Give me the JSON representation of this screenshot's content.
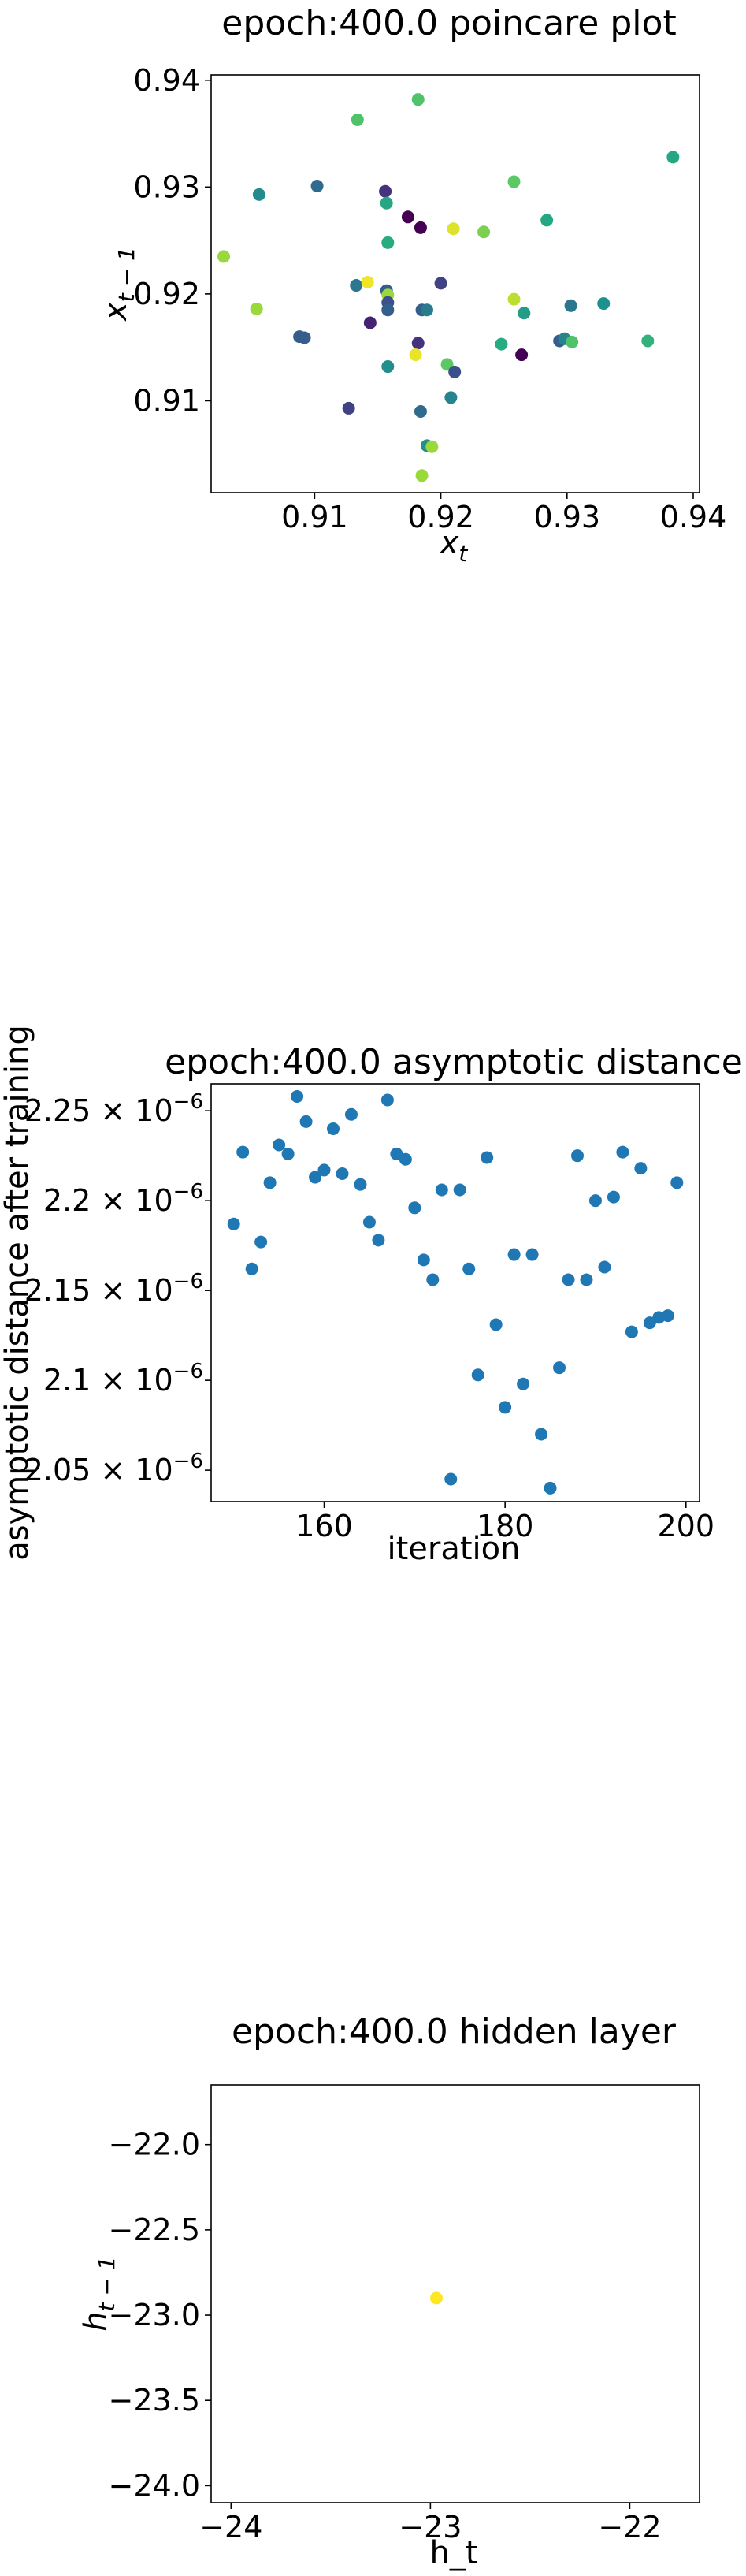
{
  "chart_data": [
    {
      "type": "scatter",
      "title": "epoch:400.0 poincare plot",
      "xlabel": "x_t",
      "ylabel": "x_{t-1}",
      "xlim": [
        0.9018,
        0.9405
      ],
      "ylim": [
        0.9014,
        0.9405
      ],
      "xticks": [
        0.91,
        0.92,
        0.93,
        0.94
      ],
      "xtick_labels": [
        "0.91",
        "0.92",
        "0.93",
        "0.94"
      ],
      "yticks": [
        0.91,
        0.92,
        0.93,
        0.94
      ],
      "ytick_labels": [
        "0.91",
        "0.92",
        "0.93",
        "0.94"
      ],
      "grid": false,
      "colormap": "viridis",
      "points": [
        {
          "x": 0.9134,
          "y": 0.9363,
          "c": 0.72
        },
        {
          "x": 0.9182,
          "y": 0.9382,
          "c": 0.72
        },
        {
          "x": 0.9384,
          "y": 0.9328,
          "c": 0.6
        },
        {
          "x": 0.9258,
          "y": 0.9305,
          "c": 0.75
        },
        {
          "x": 0.9056,
          "y": 0.9293,
          "c": 0.48
        },
        {
          "x": 0.9102,
          "y": 0.9301,
          "c": 0.35
        },
        {
          "x": 0.9156,
          "y": 0.9296,
          "c": 0.15
        },
        {
          "x": 0.9157,
          "y": 0.9285,
          "c": 0.6
        },
        {
          "x": 0.9174,
          "y": 0.9272,
          "c": 0.0
        },
        {
          "x": 0.9184,
          "y": 0.9262,
          "c": 0.0
        },
        {
          "x": 0.921,
          "y": 0.9261,
          "c": 0.95
        },
        {
          "x": 0.9234,
          "y": 0.9258,
          "c": 0.8
        },
        {
          "x": 0.9284,
          "y": 0.9269,
          "c": 0.6
        },
        {
          "x": 0.9158,
          "y": 0.9248,
          "c": 0.62
        },
        {
          "x": 0.9028,
          "y": 0.9235,
          "c": 0.85
        },
        {
          "x": 0.9133,
          "y": 0.9208,
          "c": 0.4
        },
        {
          "x": 0.9142,
          "y": 0.9211,
          "c": 0.98
        },
        {
          "x": 0.9157,
          "y": 0.9203,
          "c": 0.3
        },
        {
          "x": 0.9158,
          "y": 0.9199,
          "c": 0.85
        },
        {
          "x": 0.9158,
          "y": 0.9192,
          "c": 0.25
        },
        {
          "x": 0.9158,
          "y": 0.9185,
          "c": 0.3
        },
        {
          "x": 0.9185,
          "y": 0.9185,
          "c": 0.3
        },
        {
          "x": 0.9189,
          "y": 0.9185,
          "c": 0.42
        },
        {
          "x": 0.92,
          "y": 0.921,
          "c": 0.2
        },
        {
          "x": 0.9258,
          "y": 0.9195,
          "c": 0.9
        },
        {
          "x": 0.9266,
          "y": 0.9182,
          "c": 0.55
        },
        {
          "x": 0.9303,
          "y": 0.9189,
          "c": 0.4
        },
        {
          "x": 0.9329,
          "y": 0.9191,
          "c": 0.5
        },
        {
          "x": 0.9054,
          "y": 0.9186,
          "c": 0.85
        },
        {
          "x": 0.9144,
          "y": 0.9173,
          "c": 0.1
        },
        {
          "x": 0.9088,
          "y": 0.916,
          "c": 0.3
        },
        {
          "x": 0.9092,
          "y": 0.9159,
          "c": 0.3
        },
        {
          "x": 0.9182,
          "y": 0.9154,
          "c": 0.15
        },
        {
          "x": 0.9248,
          "y": 0.9153,
          "c": 0.62
        },
        {
          "x": 0.9294,
          "y": 0.9156,
          "c": 0.3
        },
        {
          "x": 0.9298,
          "y": 0.9158,
          "c": 0.45
        },
        {
          "x": 0.9304,
          "y": 0.9155,
          "c": 0.72
        },
        {
          "x": 0.9364,
          "y": 0.9156,
          "c": 0.65
        },
        {
          "x": 0.918,
          "y": 0.9143,
          "c": 0.97
        },
        {
          "x": 0.9264,
          "y": 0.9143,
          "c": 0.0
        },
        {
          "x": 0.9158,
          "y": 0.9132,
          "c": 0.5
        },
        {
          "x": 0.9205,
          "y": 0.9134,
          "c": 0.75
        },
        {
          "x": 0.9211,
          "y": 0.9127,
          "c": 0.25
        },
        {
          "x": 0.9208,
          "y": 0.9103,
          "c": 0.45
        },
        {
          "x": 0.9127,
          "y": 0.9093,
          "c": 0.2
        },
        {
          "x": 0.9184,
          "y": 0.909,
          "c": 0.35
        },
        {
          "x": 0.9189,
          "y": 0.9058,
          "c": 0.5
        },
        {
          "x": 0.9193,
          "y": 0.9057,
          "c": 0.85
        },
        {
          "x": 0.9185,
          "y": 0.903,
          "c": 0.85
        }
      ]
    },
    {
      "type": "scatter",
      "title": "epoch:400.0 asymptotic distance",
      "xlabel": "iteration",
      "ylabel": "asymptotic distance after training",
      "xlim": [
        147.5,
        201.5
      ],
      "ylim": [
        2.0325e-06,
        2.265e-06
      ],
      "xticks": [
        160,
        180,
        200
      ],
      "xtick_labels": [
        "160",
        "180",
        "200"
      ],
      "yticks": [
        2.05e-06,
        2.1e-06,
        2.15e-06,
        2.2e-06,
        2.25e-06
      ],
      "ytick_labels": [
        "2.05 × 10",
        "2.1 × 10",
        "2.15 × 10",
        "2.2 × 10",
        "2.25 × 10"
      ],
      "ytick_exponent": "−6",
      "grid": false,
      "color": "#1f77b4",
      "x": [
        150,
        151,
        152,
        153,
        154,
        155,
        156,
        157,
        158,
        159,
        160,
        161,
        162,
        163,
        164,
        165,
        166,
        167,
        168,
        169,
        170,
        171,
        172,
        173,
        174,
        175,
        176,
        177,
        178,
        179,
        180,
        181,
        182,
        183,
        184,
        185,
        186,
        187,
        188,
        189,
        190,
        191,
        192,
        193,
        194,
        195,
        196,
        197,
        198,
        199
      ],
      "y": [
        2.187e-06,
        2.227e-06,
        2.162e-06,
        2.177e-06,
        2.21e-06,
        2.231e-06,
        2.226e-06,
        2.258e-06,
        2.244e-06,
        2.213e-06,
        2.217e-06,
        2.24e-06,
        2.215e-06,
        2.248e-06,
        2.209e-06,
        2.188e-06,
        2.178e-06,
        2.256e-06,
        2.226e-06,
        2.223e-06,
        2.196e-06,
        2.167e-06,
        2.156e-06,
        2.206e-06,
        2.045e-06,
        2.206e-06,
        2.162e-06,
        2.103e-06,
        2.224e-06,
        2.131e-06,
        2.085e-06,
        2.17e-06,
        2.098e-06,
        2.17e-06,
        2.07e-06,
        2.04e-06,
        2.107e-06,
        2.156e-06,
        2.225e-06,
        2.156e-06,
        2.2e-06,
        2.163e-06,
        2.202e-06,
        2.227e-06,
        2.127e-06,
        2.218e-06,
        2.132e-06,
        2.135e-06,
        2.136e-06,
        2.21e-06
      ]
    },
    {
      "type": "scatter",
      "title": "epoch:400.0 hidden layer",
      "xlabel": "h_t",
      "ylabel": "h_{t-1}",
      "xlim": [
        -24.1,
        -21.65
      ],
      "ylim": [
        -24.1,
        -21.65
      ],
      "xticks": [
        -24,
        -23,
        -22
      ],
      "xtick_labels": [
        "−24",
        "−23",
        "−22"
      ],
      "yticks": [
        -22.0,
        -22.5,
        -23.0,
        -23.5,
        -24.0
      ],
      "ytick_labels": [
        "−22.0",
        "−22.5",
        "−23.0",
        "−23.5",
        "−24.0"
      ],
      "grid": false,
      "colormap": "viridis",
      "points": [
        {
          "x": -22.97,
          "y": -22.9,
          "c": 1.0
        }
      ]
    }
  ]
}
